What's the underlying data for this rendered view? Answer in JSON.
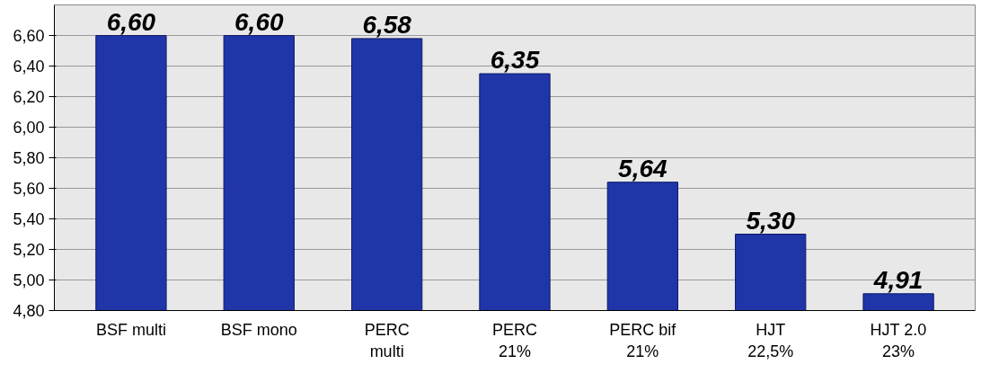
{
  "chart_data": {
    "type": "bar",
    "categories": [
      "BSF multi",
      "BSF mono",
      "PERC\nmulti",
      "PERC\n21%",
      "PERC bif\n21%",
      "HJT\n22,5%",
      "HJT 2.0\n23%"
    ],
    "values": [
      6.6,
      6.6,
      6.58,
      6.35,
      5.64,
      5.3,
      4.91
    ],
    "value_labels": [
      "6,60",
      "6,60",
      "6,58",
      "6,35",
      "5,64",
      "5,30",
      "4,91"
    ],
    "color": "#1f35a8",
    "ylim": [
      4.8,
      6.8
    ],
    "yticks": [
      {
        "value": 4.8,
        "label": "4,80"
      },
      {
        "value": 5.0,
        "label": "5,00"
      },
      {
        "value": 5.2,
        "label": "5,20"
      },
      {
        "value": 5.4,
        "label": "5,40"
      },
      {
        "value": 5.6,
        "label": "5,60"
      },
      {
        "value": 5.8,
        "label": "5,80"
      },
      {
        "value": 6.0,
        "label": "6,00"
      },
      {
        "value": 6.2,
        "label": "6,20"
      },
      {
        "value": 6.4,
        "label": "6,40"
      },
      {
        "value": 6.6,
        "label": "6,60"
      }
    ],
    "grid": "y"
  }
}
